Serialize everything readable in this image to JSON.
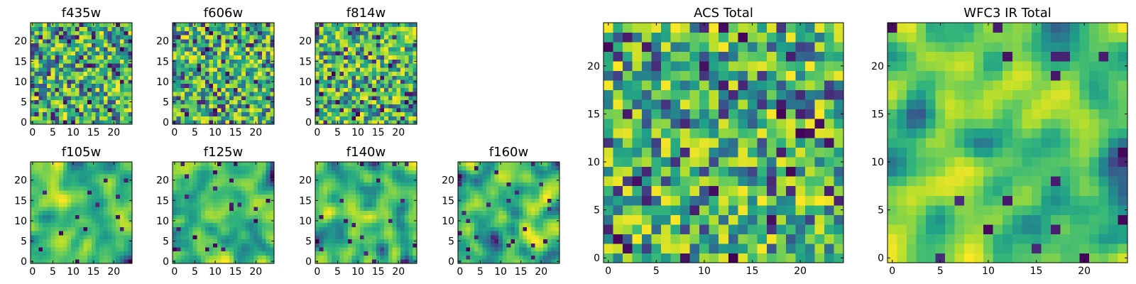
{
  "chart_data": [
    {
      "type": "heatmap",
      "title": "f435w",
      "grid_size": 25,
      "seed": 11,
      "smooth": 0,
      "xticks": [
        0,
        5,
        10,
        15,
        20
      ],
      "yticks": [
        0,
        5,
        10,
        15,
        20
      ],
      "xlim": [
        -0.5,
        24.5
      ],
      "ylim": [
        -0.5,
        24.5
      ],
      "colormap": "viridis"
    },
    {
      "type": "heatmap",
      "title": "f606w",
      "grid_size": 25,
      "seed": 23,
      "smooth": 0,
      "xticks": [
        0,
        5,
        10,
        15,
        20
      ],
      "yticks": [
        0,
        5,
        10,
        15,
        20
      ],
      "xlim": [
        -0.5,
        24.5
      ],
      "ylim": [
        -0.5,
        24.5
      ],
      "colormap": "viridis"
    },
    {
      "type": "heatmap",
      "title": "f814w",
      "grid_size": 25,
      "seed": 37,
      "smooth": 0,
      "xticks": [
        0,
        5,
        10,
        15,
        20
      ],
      "yticks": [
        0,
        5,
        10,
        15,
        20
      ],
      "xlim": [
        -0.5,
        24.5
      ],
      "ylim": [
        -0.5,
        24.5
      ],
      "colormap": "viridis"
    },
    {
      "type": "heatmap",
      "title": "f105w",
      "grid_size": 25,
      "seed": 41,
      "smooth": 2,
      "xticks": [
        0,
        5,
        10,
        15,
        20
      ],
      "yticks": [
        0,
        5,
        10,
        15,
        20
      ],
      "xlim": [
        -0.5,
        24.5
      ],
      "ylim": [
        -0.5,
        24.5
      ],
      "colormap": "viridis"
    },
    {
      "type": "heatmap",
      "title": "f125w",
      "grid_size": 25,
      "seed": 53,
      "smooth": 2,
      "xticks": [
        0,
        5,
        10,
        15,
        20
      ],
      "yticks": [
        0,
        5,
        10,
        15,
        20
      ],
      "xlim": [
        -0.5,
        24.5
      ],
      "ylim": [
        -0.5,
        24.5
      ],
      "colormap": "viridis"
    },
    {
      "type": "heatmap",
      "title": "f140w",
      "grid_size": 25,
      "seed": 67,
      "smooth": 2,
      "xticks": [
        0,
        5,
        10,
        15,
        20
      ],
      "yticks": [
        0,
        5,
        10,
        15,
        20
      ],
      "xlim": [
        -0.5,
        24.5
      ],
      "ylim": [
        -0.5,
        24.5
      ],
      "colormap": "viridis"
    },
    {
      "type": "heatmap",
      "title": "f160w",
      "grid_size": 25,
      "seed": 79,
      "smooth": 2,
      "xticks": [
        0,
        5,
        10,
        15,
        20
      ],
      "yticks": [
        0,
        5,
        10,
        15,
        20
      ],
      "xlim": [
        -0.5,
        24.5
      ],
      "ylim": [
        -0.5,
        24.5
      ],
      "colormap": "viridis"
    },
    {
      "type": "heatmap",
      "title": "ACS Total",
      "grid_size": 25,
      "seed": 97,
      "smooth": 0,
      "xticks": [
        0,
        5,
        10,
        15,
        20
      ],
      "yticks": [
        0,
        5,
        10,
        15,
        20
      ],
      "xlim": [
        -0.5,
        24.5
      ],
      "ylim": [
        -0.5,
        24.5
      ],
      "colormap": "viridis"
    },
    {
      "type": "heatmap",
      "title": "WFC3 IR Total",
      "grid_size": 25,
      "seed": 113,
      "smooth": 2,
      "xticks": [
        0,
        5,
        10,
        15,
        20
      ],
      "yticks": [
        0,
        5,
        10,
        15,
        20
      ],
      "xlim": [
        -0.5,
        24.5
      ],
      "ylim": [
        -0.5,
        24.5
      ],
      "colormap": "viridis"
    }
  ]
}
